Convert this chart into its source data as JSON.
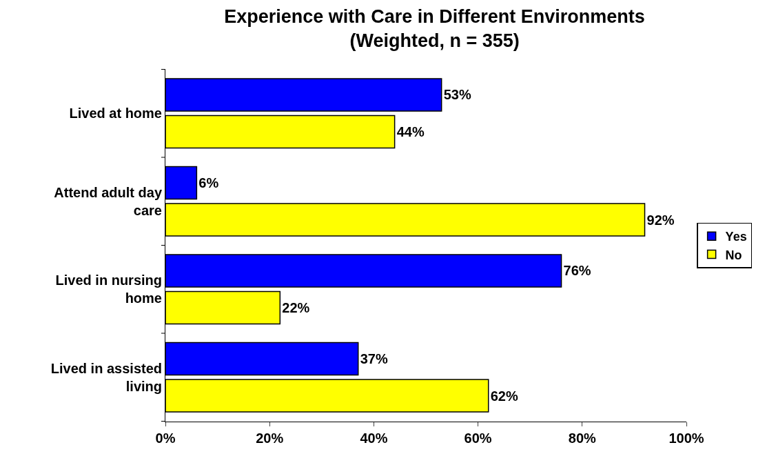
{
  "chart_data": {
    "type": "bar",
    "orientation": "horizontal",
    "title": "Experience with Care in Different Environments\n(Weighted, n = 355)",
    "categories": [
      "Lived at home",
      "Attend adult day\ncare",
      "Lived in nursing\nhome",
      "Lived in assisted\nliving"
    ],
    "series": [
      {
        "name": "Yes",
        "color": "#0000ff",
        "values": [
          53,
          6,
          76,
          37
        ],
        "value_labels": [
          "53%",
          "6%",
          "76%",
          "37%"
        ]
      },
      {
        "name": "No",
        "color": "#ffff00",
        "values": [
          44,
          92,
          22,
          62
        ],
        "value_labels": [
          "44%",
          "92%",
          "22%",
          "62%"
        ]
      }
    ],
    "xlim": [
      0,
      100
    ],
    "xticks": [
      {
        "value": 0,
        "label": "0%"
      },
      {
        "value": 20,
        "label": "20%"
      },
      {
        "value": 40,
        "label": "40%"
      },
      {
        "value": 60,
        "label": "60%"
      },
      {
        "value": 80,
        "label": "80%"
      },
      {
        "value": 100,
        "label": "100%"
      }
    ],
    "legend": "right"
  }
}
